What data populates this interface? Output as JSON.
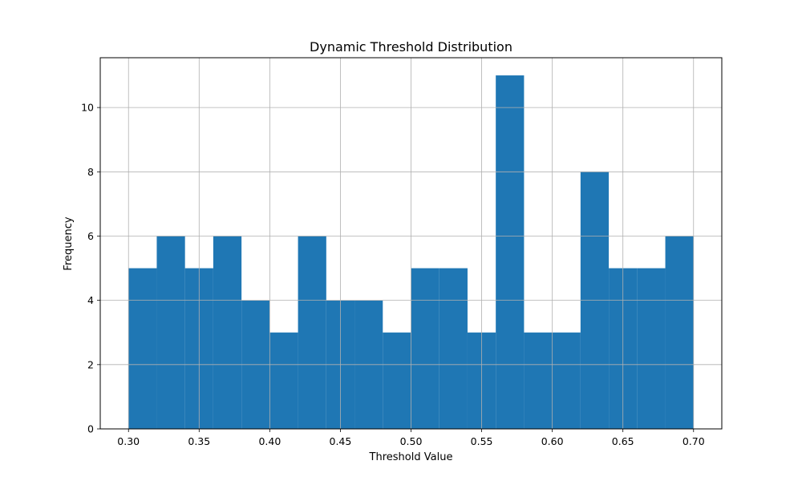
{
  "chart_data": {
    "type": "bar",
    "title": "Dynamic Threshold Distribution",
    "xlabel": "Threshold Value",
    "ylabel": "Frequency",
    "xlim": [
      0.28,
      0.72
    ],
    "ylim": [
      0,
      11.55
    ],
    "grid": true,
    "bar_color": "#1f77b4",
    "x_ticks": [
      0.3,
      0.35,
      0.4,
      0.45,
      0.5,
      0.55,
      0.6,
      0.65,
      0.7
    ],
    "x_tick_labels": [
      "0.30",
      "0.35",
      "0.40",
      "0.45",
      "0.50",
      "0.55",
      "0.60",
      "0.65",
      "0.70"
    ],
    "y_ticks": [
      0,
      2,
      4,
      6,
      8,
      10
    ],
    "y_tick_labels": [
      "0",
      "2",
      "4",
      "6",
      "8",
      "10"
    ],
    "bins": [
      {
        "start": 0.3,
        "end": 0.32,
        "count": 5
      },
      {
        "start": 0.32,
        "end": 0.34,
        "count": 6
      },
      {
        "start": 0.34,
        "end": 0.36,
        "count": 5
      },
      {
        "start": 0.36,
        "end": 0.38,
        "count": 6
      },
      {
        "start": 0.38,
        "end": 0.4,
        "count": 4
      },
      {
        "start": 0.4,
        "end": 0.42,
        "count": 3
      },
      {
        "start": 0.42,
        "end": 0.44,
        "count": 6
      },
      {
        "start": 0.44,
        "end": 0.46,
        "count": 4
      },
      {
        "start": 0.46,
        "end": 0.48,
        "count": 4
      },
      {
        "start": 0.48,
        "end": 0.5,
        "count": 3
      },
      {
        "start": 0.5,
        "end": 0.52,
        "count": 5
      },
      {
        "start": 0.52,
        "end": 0.54,
        "count": 5
      },
      {
        "start": 0.54,
        "end": 0.56,
        "count": 3
      },
      {
        "start": 0.56,
        "end": 0.58,
        "count": 11
      },
      {
        "start": 0.58,
        "end": 0.6,
        "count": 3
      },
      {
        "start": 0.6,
        "end": 0.62,
        "count": 3
      },
      {
        "start": 0.62,
        "end": 0.64,
        "count": 8
      },
      {
        "start": 0.64,
        "end": 0.66,
        "count": 5
      },
      {
        "start": 0.66,
        "end": 0.68,
        "count": 5
      },
      {
        "start": 0.68,
        "end": 0.7,
        "count": 6
      }
    ]
  }
}
